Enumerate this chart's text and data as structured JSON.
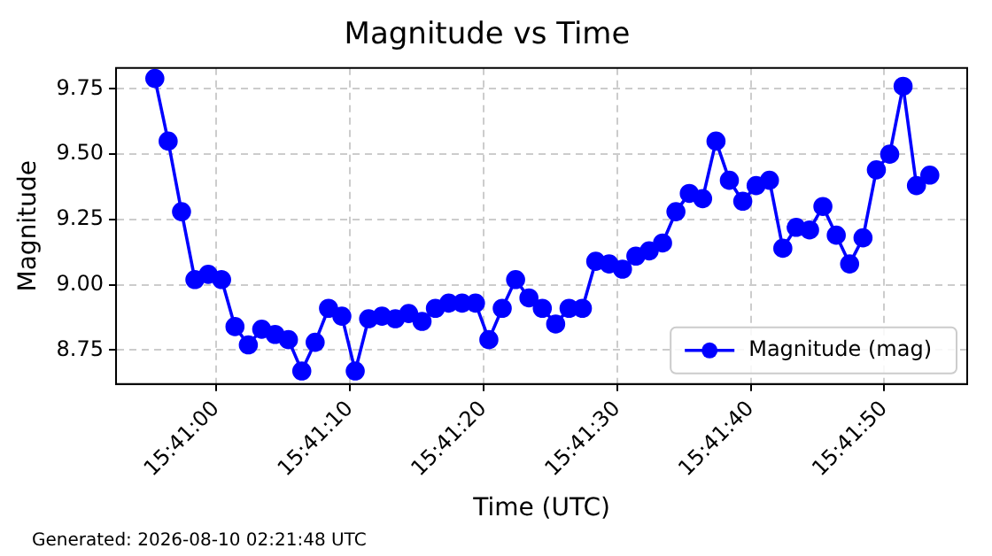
{
  "chart_data": {
    "type": "line",
    "title": "Magnitude vs Time",
    "xlabel": "Time (UTC)",
    "ylabel": "Magnitude",
    "x": [
      15.682056,
      15.682333,
      15.682611,
      15.682889,
      15.683167,
      15.683444,
      15.683722,
      15.684,
      15.684278,
      15.684556,
      15.684833,
      15.685111,
      15.685389,
      15.685667,
      15.685944,
      15.686222,
      15.6865,
      15.686778,
      15.687056,
      15.687333,
      15.687611,
      15.687889,
      15.688167,
      15.688444,
      15.688722,
      15.689,
      15.689278,
      15.689556,
      15.689833,
      15.690111,
      15.690389,
      15.690667,
      15.690944,
      15.691222,
      15.6915,
      15.691778,
      15.692056,
      15.692333,
      15.692611,
      15.692889,
      15.693167,
      15.693444,
      15.693722,
      15.694,
      15.694278,
      15.694556,
      15.694833,
      15.695111,
      15.695389,
      15.695667,
      15.695944,
      15.696222,
      15.6965,
      15.696778,
      15.697056,
      15.697333,
      15.697611,
      15.697889,
      15.698167
    ],
    "series": [
      {
        "name": "Magnitude (mag)",
        "color": "#0000ff",
        "values": [
          9.79,
          9.55,
          9.28,
          9.02,
          9.04,
          9.02,
          8.84,
          8.77,
          8.83,
          8.81,
          8.79,
          8.67,
          8.78,
          8.91,
          8.88,
          8.67,
          8.87,
          8.88,
          8.87,
          8.89,
          8.86,
          8.91,
          8.93,
          8.93,
          8.93,
          8.79,
          8.91,
          9.02,
          8.95,
          8.91,
          8.85,
          8.91,
          8.91,
          9.09,
          9.08,
          9.06,
          9.11,
          9.13,
          9.16,
          9.28,
          9.35,
          9.33,
          9.55,
          9.4,
          9.32,
          9.38,
          9.4,
          9.14,
          9.22,
          9.21,
          9.3,
          9.19,
          9.08,
          9.18,
          9.44,
          9.5,
          9.76,
          9.38,
          9.42
        ]
      }
    ],
    "xlim": [
      15.68125,
      15.698944
    ],
    "xticks": [
      {
        "value": 15.683333,
        "label": "15:41:00"
      },
      {
        "value": 15.686111,
        "label": "15:41:10"
      },
      {
        "value": 15.688889,
        "label": "15:41:20"
      },
      {
        "value": 15.691667,
        "label": "15:41:30"
      },
      {
        "value": 15.694444,
        "label": "15:41:40"
      },
      {
        "value": 15.697222,
        "label": "15:41:50"
      }
    ],
    "ylim": [
      8.62,
      9.83
    ],
    "yticks": [
      {
        "value": 8.75,
        "label": "8.75"
      },
      {
        "value": 9.0,
        "label": "9.00"
      },
      {
        "value": 9.25,
        "label": "9.25"
      },
      {
        "value": 9.5,
        "label": "9.50"
      },
      {
        "value": 9.75,
        "label": "9.75"
      }
    ],
    "grid": true,
    "legend": "bottom right",
    "marker": "circle",
    "line_style": "solid",
    "annotations": [
      "Generated: 2026-08-10 02:21:48 UTC"
    ]
  }
}
